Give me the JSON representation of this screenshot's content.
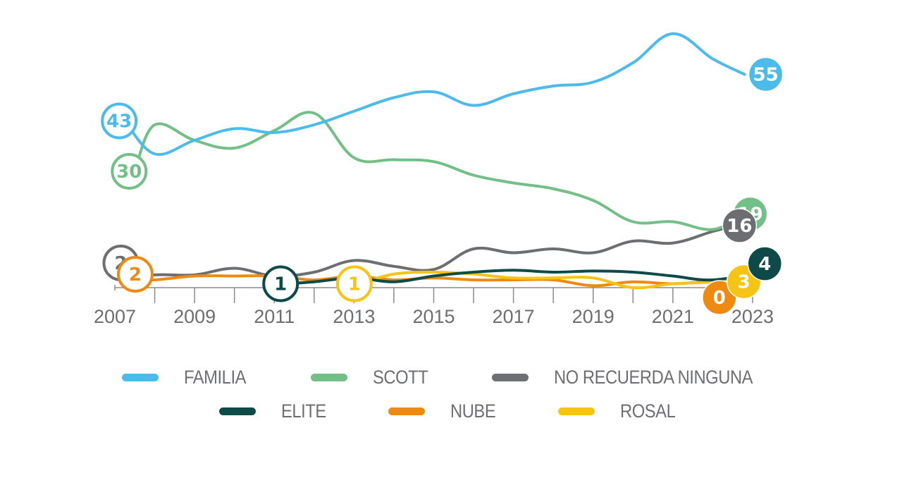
{
  "chart_data": {
    "type": "line",
    "title": "",
    "xlabel": "",
    "ylabel": "",
    "x_ticks": [
      "2007",
      "2009",
      "2011",
      "2013",
      "2015",
      "2017",
      "2019",
      "2021",
      "2023"
    ],
    "xlim": [
      2007,
      2023
    ],
    "ylim": [
      0,
      70
    ],
    "grid": false,
    "legend_position": "bottom",
    "series": [
      {
        "name": "FAMILIA",
        "color": "#4dbbe9",
        "x": [
          2007.25,
          2008,
          2009,
          2010,
          2011,
          2012,
          2013,
          2014,
          2015,
          2016,
          2017,
          2018,
          2019,
          2020,
          2021,
          2022,
          2022.8
        ],
        "values": [
          43,
          34.5,
          38,
          41,
          40,
          42,
          45.5,
          49,
          50.5,
          47,
          50,
          52,
          53,
          58,
          65.5,
          59,
          55
        ],
        "start_label": "43",
        "end_label": "55",
        "end_filled": true
      },
      {
        "name": "SCOTT",
        "color": "#72bf88",
        "x": [
          2007.5,
          2008,
          2009,
          2010,
          2011,
          2012,
          2013,
          2014,
          2015,
          2016,
          2017,
          2018,
          2019,
          2020,
          2021,
          2022,
          2022.8
        ],
        "values": [
          30,
          42,
          38,
          36,
          40.5,
          45,
          33.5,
          33,
          32.5,
          29,
          27,
          25.5,
          22.5,
          17,
          17,
          15,
          19
        ],
        "start_label": "30",
        "end_label": "19",
        "end_filled": true
      },
      {
        "name": "NO RECUERDA NINGUNA",
        "color": "#6d6e71",
        "x": [
          2007.15,
          2008,
          2009,
          2010,
          2011,
          2012,
          2013,
          2014,
          2015,
          2016,
          2017,
          2018,
          2019,
          2020,
          2021,
          2022,
          2022.6
        ],
        "values": [
          2,
          3.3,
          3.3,
          5,
          3,
          4,
          7,
          5.5,
          4.7,
          10,
          9,
          10,
          9,
          12,
          11.5,
          14.5,
          16
        ],
        "start_label": "2",
        "end_label": "16",
        "end_filled": true
      },
      {
        "name": "ELITE",
        "color": "#0e4a48",
        "x": [
          2011.3,
          2012,
          2013,
          2014,
          2015,
          2016,
          2017,
          2018,
          2019,
          2020,
          2021,
          2022,
          2023.2
        ],
        "values": [
          1,
          1.5,
          2.5,
          1.5,
          3,
          4,
          4.5,
          4,
          4.3,
          4,
          3,
          2,
          4
        ],
        "start_label": "1",
        "end_label": "4",
        "end_filled": true
      },
      {
        "name": "NUBE",
        "color": "#ee8a12",
        "x": [
          2007.3,
          2008,
          2009,
          2010,
          2011,
          2012,
          2013,
          2014,
          2015,
          2016,
          2017,
          2018,
          2019,
          2020,
          2021,
          2022,
          2022.45
        ],
        "values": [
          2,
          2,
          3,
          3,
          3,
          2,
          3,
          2,
          2.5,
          2,
          2,
          2,
          0.5,
          1.5,
          1,
          1.5,
          0
        ],
        "start_label": "2",
        "end_label": "0",
        "end_filled": true
      },
      {
        "name": "ROSAL",
        "color": "#f6c414",
        "x": [
          2013.15,
          2014,
          2015,
          2016,
          2017,
          2018,
          2019,
          2020,
          2021,
          2022,
          2022.8
        ],
        "values": [
          1,
          3.5,
          4,
          3.5,
          2.5,
          2.5,
          2.5,
          0,
          1,
          1.5,
          3
        ],
        "start_label": "1",
        "end_label": "3",
        "end_filled": true
      }
    ]
  },
  "legend": {
    "row1": [
      {
        "label": "FAMILIA",
        "color": "#4dbbe9"
      },
      {
        "label": "SCOTT",
        "color": "#72bf88"
      },
      {
        "label": "NO RECUERDA NINGUNA",
        "color": "#6d6e71"
      }
    ],
    "row2": [
      {
        "label": "ELITE",
        "color": "#0e4a48"
      },
      {
        "label": "NUBE",
        "color": "#ee8a12"
      },
      {
        "label": "ROSAL",
        "color": "#f6c414"
      }
    ]
  }
}
